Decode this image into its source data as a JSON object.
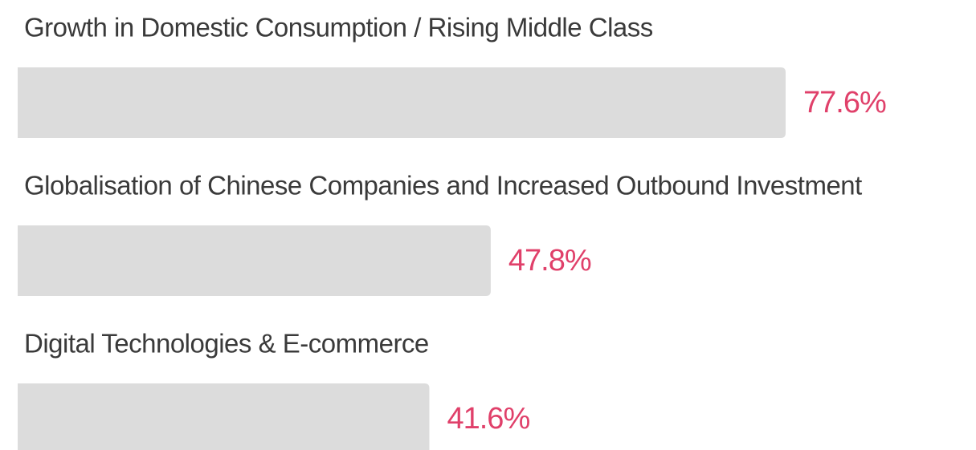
{
  "chart_data": {
    "type": "bar",
    "orientation": "horizontal",
    "categories": [
      "Growth in Domestic Consumption / Rising Middle Class",
      "Globalisation of Chinese Companies and Increased Outbound Investment",
      "Digital Technologies & E-commerce"
    ],
    "values": [
      77.6,
      47.8,
      41.6
    ],
    "value_labels": [
      "77.6%",
      "47.8%",
      "41.6%"
    ],
    "color": "#dcdcdc",
    "label_color": "#e0406a"
  }
}
